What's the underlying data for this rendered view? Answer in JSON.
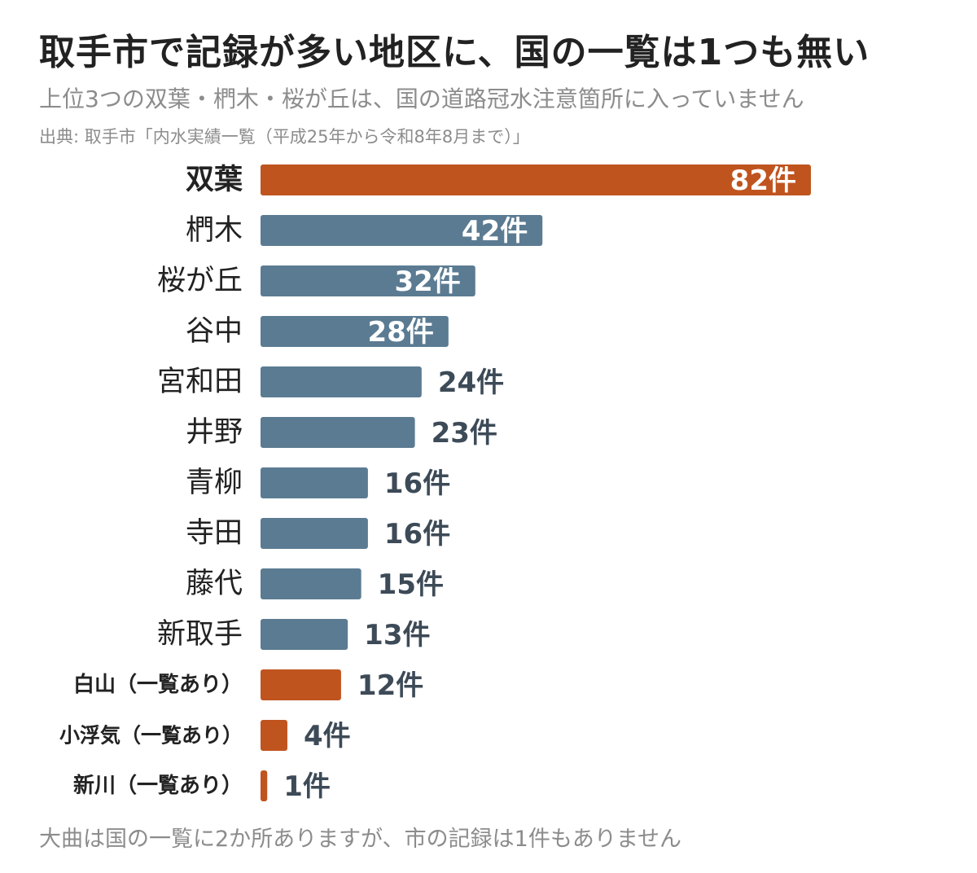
{
  "header": {
    "title": "取手市で記録が多い地区に、国の一覧は1つも無い",
    "subtitle": "上位3つの双葉・椚木・桜が丘は、国の道路冠水注意箇所に入っていません",
    "source": "出典: 取手市「内水実績一覧（平成25年から令和8年8月まで）」"
  },
  "footer": {
    "note": "大曲は国の一覧に2か所ありますが、市の記録は1件もありません"
  },
  "colors": {
    "highlight": "#c0541f",
    "default": "#5b7b92",
    "label_dark": "#222222",
    "value_outside": "#3d4a57",
    "value_inside": "#ffffff"
  },
  "chart_data": {
    "type": "bar",
    "orientation": "horizontal",
    "unit_suffix": "件",
    "categories": [
      "双葉",
      "椚木",
      "桜が丘",
      "谷中",
      "宮和田",
      "井野",
      "青柳",
      "寺田",
      "藤代",
      "新取手",
      "白山（一覧あり）",
      "小浮気（一覧あり）",
      "新川（一覧あり）"
    ],
    "values": [
      82,
      42,
      32,
      28,
      24,
      23,
      16,
      16,
      15,
      13,
      12,
      4,
      1
    ],
    "highlighted": [
      true,
      false,
      false,
      false,
      false,
      false,
      false,
      false,
      false,
      false,
      true,
      true,
      true
    ],
    "bold_labels": [
      true,
      false,
      false,
      false,
      false,
      false,
      false,
      false,
      false,
      false,
      true,
      true,
      true
    ],
    "xlim": [
      0,
      82
    ]
  }
}
